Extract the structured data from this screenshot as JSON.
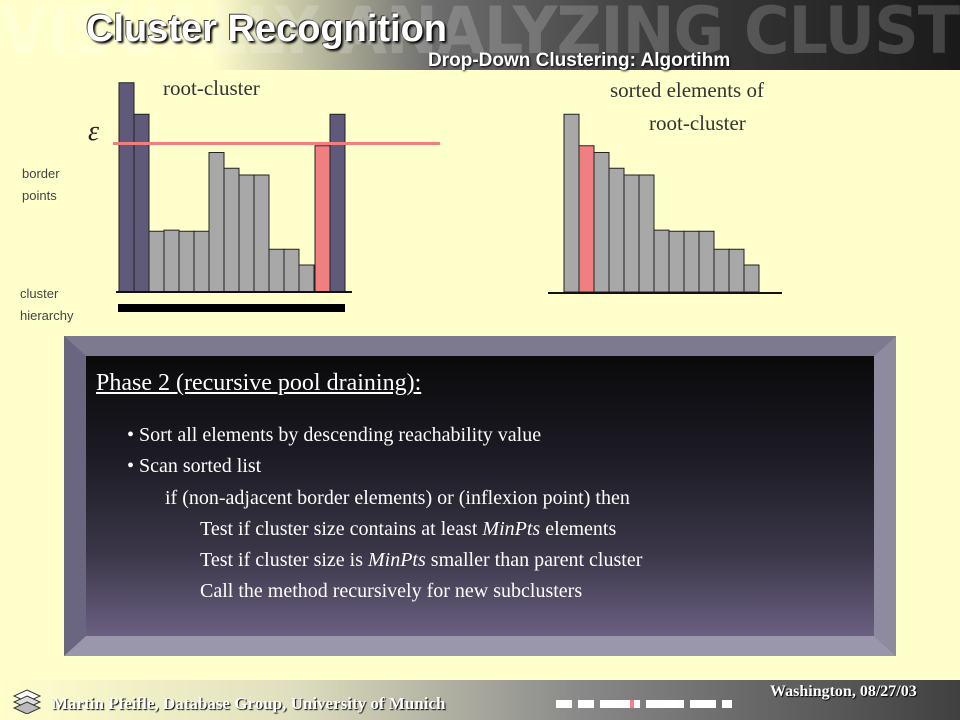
{
  "header": {
    "banner_text": "VISUALLY ANALYZING CLUSTER HIERARCHIES",
    "title": "Cluster Recognition",
    "subtitle": "Drop-Down Clustering: Algortihm"
  },
  "left_chart": {
    "label": "root-cluster",
    "epsilon": "ε",
    "values": [
      9.3,
      7.9,
      2.7,
      2.75,
      2.7,
      2.7,
      6.2,
      5.5,
      5.2,
      5.2,
      1.9,
      1.9,
      1.2,
      6.5,
      7.9
    ],
    "highlight_index": 13,
    "epsilon_value": 6.6,
    "border_points_label": "border\npoints",
    "cluster_hierarchy_label": "cluster\nhierarchy"
  },
  "right_chart": {
    "label_line1": "sorted elements of",
    "label_line2": "root-cluster",
    "values": [
      7.9,
      6.5,
      6.2,
      5.5,
      5.2,
      5.2,
      2.75,
      2.7,
      2.7,
      2.7,
      1.9,
      1.9,
      1.2
    ],
    "highlight_index": 1
  },
  "colors": {
    "bar_dark": "#5f5a7a",
    "bar_gray": "#a8a8a8",
    "bar_red": "#f08080",
    "epsilon_line": "#f08080",
    "background": "#ffffcc"
  },
  "panel": {
    "heading": "Phase 2 (recursive pool draining):",
    "bullets": [
      "• Sort all elements by descending  reachability value",
      "• Scan sorted list"
    ],
    "lines": [
      "if (non-adjacent border elements) or (inflexion point) then",
      "Test if  cluster size contains at least MinPts  elements",
      "Test if  cluster size is MinPts smaller than parent cluster",
      "Call the method recursively for  new subclusters"
    ],
    "minpts_word": "MinPts"
  },
  "footer": {
    "left": "Martin Pfeifle, Database Group, University of Munich",
    "right": "Washington, 08/27/03"
  }
}
